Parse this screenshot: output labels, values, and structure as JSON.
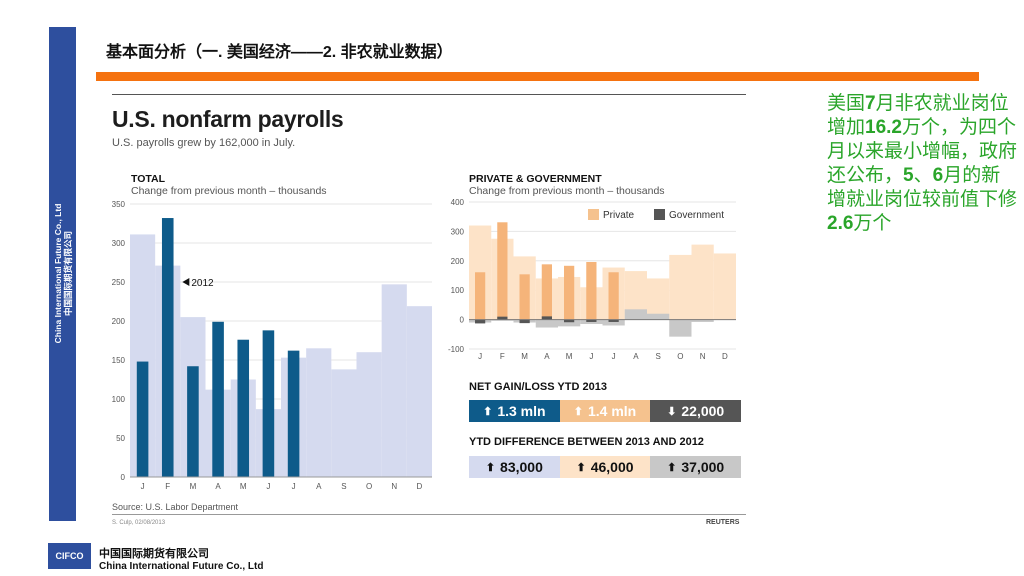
{
  "slide": {
    "title": "基本面分析（一. 美国经济——2. 非农就业数据）",
    "sidebar_en": "China International Future Co., Ltd",
    "sidebar_cn": "中国国际期货有限公司",
    "accent_color": "#f5720f",
    "brand_color": "#2e4f9e"
  },
  "annotation": {
    "pre1": " 美国",
    "n1": "7",
    "mid1": "月非农就业岗位增加",
    "n2": "16.2",
    "mid2": "万个，为四个月以来最小增幅，政府还公布，",
    "n3": "5",
    "mid3": "、",
    "n4": "6",
    "mid4": "月的新增就业岗位较前值下修",
    "n5": "2.6",
    "mid5": "万个",
    "color": "#2aa52a"
  },
  "footer": {
    "logo": "CIFCO",
    "company_cn": "中国国际期货有限公司",
    "company_en": "China International Future Co., Ltd"
  },
  "chart": {
    "title": "U.S. nonfarm payrolls",
    "subtitle": "U.S. payrolls grew by 162,000 in July.",
    "source": "Source: U.S. Labor Department",
    "credit": "S. Culp, 02/08/2013",
    "publisher": "REUTERS",
    "net_title": "NET GAIN/LOSS YTD 2013",
    "net": [
      "1.3 mln",
      "1.4 mln",
      "22,000"
    ],
    "diff_title": "YTD DIFFERENCE BETWEEN 2013 AND 2012",
    "diff": [
      "83,000",
      "46,000",
      "37,000"
    ]
  },
  "chart_data": [
    {
      "type": "bar",
      "title": "TOTAL",
      "subtitle": "Change from previous month – thousands",
      "categories": [
        "J",
        "F",
        "M",
        "A",
        "M",
        "J",
        "J",
        "A",
        "S",
        "O",
        "N",
        "D"
      ],
      "ylim": [
        0,
        350
      ],
      "yticks": [
        0,
        50,
        100,
        150,
        200,
        250,
        300,
        350
      ],
      "annotation": "2012",
      "series": [
        {
          "name": "2012",
          "color": "#d5daef",
          "values": [
            311,
            271,
            205,
            112,
            125,
            87,
            153,
            165,
            138,
            160,
            247,
            219
          ]
        },
        {
          "name": "2013",
          "color": "#0e5b8a",
          "values": [
            148,
            332,
            142,
            199,
            176,
            188,
            162,
            null,
            null,
            null,
            null,
            null
          ]
        }
      ]
    },
    {
      "type": "bar",
      "title": "PRIVATE & GOVERNMENT",
      "subtitle": "Change from previous month – thousands",
      "categories": [
        "J",
        "F",
        "M",
        "A",
        "M",
        "J",
        "J",
        "A",
        "S",
        "O",
        "N",
        "D"
      ],
      "ylim": [
        -100,
        400
      ],
      "yticks": [
        -100,
        0,
        100,
        200,
        300,
        400
      ],
      "legend": [
        "Private",
        "Government"
      ],
      "series": [
        {
          "name": "Private",
          "color": "#f5c28e",
          "values2012": [
            320,
            275,
            215,
            140,
            145,
            110,
            177,
            165,
            140,
            220,
            255,
            225
          ],
          "values2013": [
            161,
            331,
            154,
            188,
            183,
            196,
            161,
            null,
            null,
            null,
            null,
            null
          ]
        },
        {
          "name": "Government",
          "color": "#555555",
          "values2012": [
            -10,
            -4,
            -10,
            -27,
            -23,
            -15,
            -20,
            35,
            20,
            -58,
            -8,
            0
          ],
          "values2013": [
            -13,
            10,
            -12,
            11,
            -9,
            -8,
            -8,
            null,
            null,
            null,
            null,
            null
          ]
        }
      ]
    }
  ]
}
